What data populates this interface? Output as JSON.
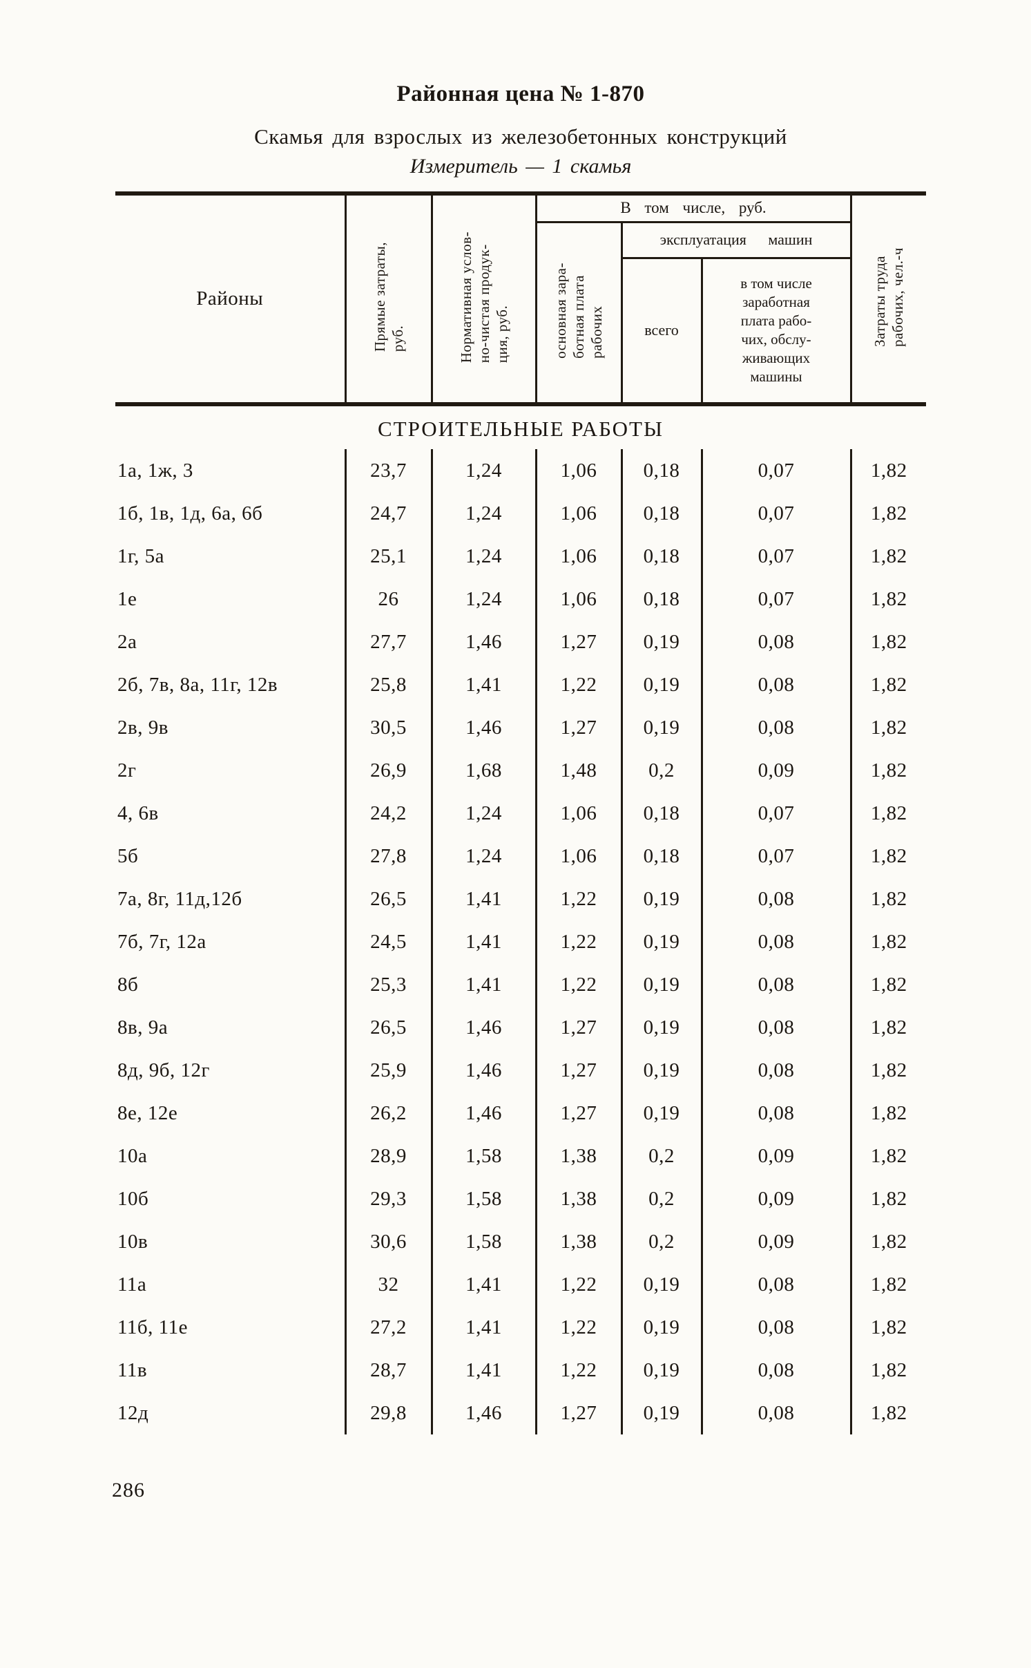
{
  "page": {
    "title": "Районная цена № 1-870",
    "subtitle": "Скамья для взрослых из железобетонных конструкций",
    "measure": "Измеритель — 1 скамья",
    "page_number": "286"
  },
  "table": {
    "section_title": "СТРОИТЕЛЬНЫЕ РАБОТЫ",
    "headers": {
      "districts": "Районы",
      "direct": "Прямые затраты,\nруб.",
      "normative": "Нормативная услов-\nно-чистая продук-\nция, руб.",
      "group_incl": "В том числе, руб.",
      "basic_wage": "основная зара-\nботная плата\nрабочих",
      "machines_group": "эксплуатация машин",
      "total": "всего",
      "machines_wage": "в том числе\nзаработная\nплата рабо-\nчих, обслу-\nживающих\nмашины",
      "labor": "Затраты труда\nрабочих, чел.-ч"
    },
    "rows": [
      {
        "districts": "1а, 1ж, 3",
        "values": [
          "23,7",
          "1,24",
          "1,06",
          "0,18",
          "0,07",
          "1,82"
        ]
      },
      {
        "districts": "1б, 1в, 1д, 6а, 6б",
        "values": [
          "24,7",
          "1,24",
          "1,06",
          "0,18",
          "0,07",
          "1,82"
        ]
      },
      {
        "districts": "1г, 5а",
        "values": [
          "25,1",
          "1,24",
          "1,06",
          "0,18",
          "0,07",
          "1,82"
        ]
      },
      {
        "districts": "1е",
        "values": [
          "26",
          "1,24",
          "1,06",
          "0,18",
          "0,07",
          "1,82"
        ]
      },
      {
        "districts": "2а",
        "values": [
          "27,7",
          "1,46",
          "1,27",
          "0,19",
          "0,08",
          "1,82"
        ]
      },
      {
        "districts": "2б, 7в, 8а, 11г, 12в",
        "values": [
          "25,8",
          "1,41",
          "1,22",
          "0,19",
          "0,08",
          "1,82"
        ]
      },
      {
        "districts": "2в, 9в",
        "values": [
          "30,5",
          "1,46",
          "1,27",
          "0,19",
          "0,08",
          "1,82"
        ]
      },
      {
        "districts": "2г",
        "values": [
          "26,9",
          "1,68",
          "1,48",
          "0,2",
          "0,09",
          "1,82"
        ]
      },
      {
        "districts": "4, 6в",
        "values": [
          "24,2",
          "1,24",
          "1,06",
          "0,18",
          "0,07",
          "1,82"
        ]
      },
      {
        "districts": "5б",
        "values": [
          "27,8",
          "1,24",
          "1,06",
          "0,18",
          "0,07",
          "1,82"
        ]
      },
      {
        "districts": "7а, 8г, 11д,12б",
        "values": [
          "26,5",
          "1,41",
          "1,22",
          "0,19",
          "0,08",
          "1,82"
        ]
      },
      {
        "districts": "7б, 7г, 12а",
        "values": [
          "24,5",
          "1,41",
          "1,22",
          "0,19",
          "0,08",
          "1,82"
        ]
      },
      {
        "districts": "8б",
        "values": [
          "25,3",
          "1,41",
          "1,22",
          "0,19",
          "0,08",
          "1,82"
        ]
      },
      {
        "districts": "8в, 9а",
        "values": [
          "26,5",
          "1,46",
          "1,27",
          "0,19",
          "0,08",
          "1,82"
        ]
      },
      {
        "districts": "8д, 9б, 12г",
        "values": [
          "25,9",
          "1,46",
          "1,27",
          "0,19",
          "0,08",
          "1,82"
        ]
      },
      {
        "districts": "8е, 12е",
        "values": [
          "26,2",
          "1,46",
          "1,27",
          "0,19",
          "0,08",
          "1,82"
        ]
      },
      {
        "districts": "10а",
        "values": [
          "28,9",
          "1,58",
          "1,38",
          "0,2",
          "0,09",
          "1,82"
        ]
      },
      {
        "districts": "10б",
        "values": [
          "29,3",
          "1,58",
          "1,38",
          "0,2",
          "0,09",
          "1,82"
        ]
      },
      {
        "districts": "10в",
        "values": [
          "30,6",
          "1,58",
          "1,38",
          "0,2",
          "0,09",
          "1,82"
        ]
      },
      {
        "districts": "11а",
        "values": [
          "32",
          "1,41",
          "1,22",
          "0,19",
          "0,08",
          "1,82"
        ]
      },
      {
        "districts": "11б, 11е",
        "values": [
          "27,2",
          "1,41",
          "1,22",
          "0,19",
          "0,08",
          "1,82"
        ]
      },
      {
        "districts": "11в",
        "values": [
          "28,7",
          "1,41",
          "1,22",
          "0,19",
          "0,08",
          "1,82"
        ]
      },
      {
        "districts": "12д",
        "values": [
          "29,8",
          "1,46",
          "1,27",
          "0,19",
          "0,08",
          "1,82"
        ]
      }
    ]
  }
}
